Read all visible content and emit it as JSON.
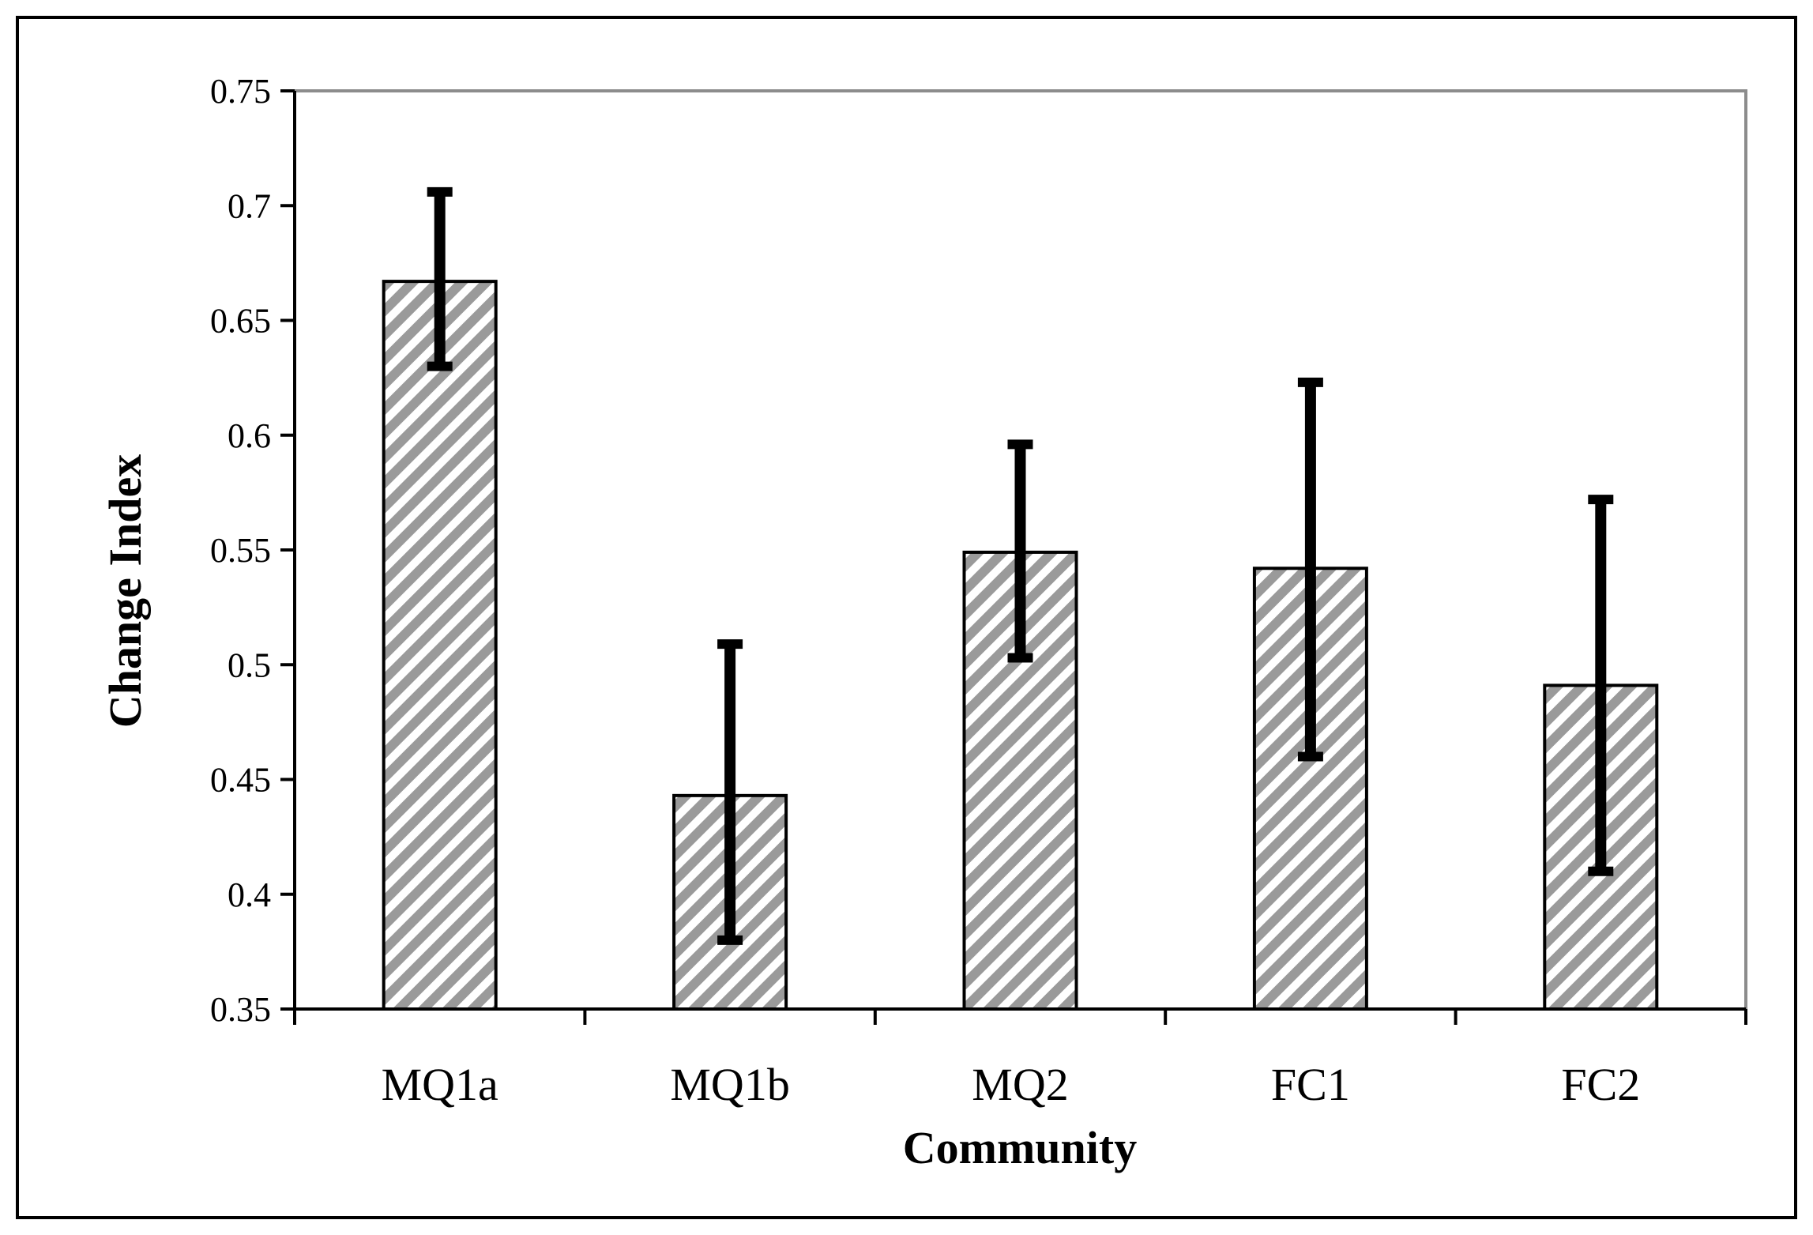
{
  "chart_data": {
    "type": "bar",
    "title": "",
    "xlabel": "Community",
    "ylabel": "Change Index",
    "categories": [
      "MQ1a",
      "MQ1b",
      "MQ2",
      "FC1",
      "FC2"
    ],
    "values": [
      0.667,
      0.443,
      0.549,
      0.542,
      0.491
    ],
    "error_low": [
      0.63,
      0.38,
      0.503,
      0.46,
      0.41
    ],
    "error_high": [
      0.706,
      0.509,
      0.596,
      0.623,
      0.572
    ],
    "ylim": [
      0.35,
      0.75
    ],
    "yticks": [
      0.35,
      0.4,
      0.45,
      0.5,
      0.55,
      0.6,
      0.65,
      0.7,
      0.75
    ],
    "ytick_labels": [
      "0.35",
      "0.4",
      "0.45",
      "0.5",
      "0.55",
      "0.6",
      "0.65",
      "0.7",
      "0.75"
    ],
    "grid": false,
    "legend": "none",
    "bar_pattern": "diagonal-hatch",
    "colors": {
      "hatch_stripe": "#9a9a9a",
      "hatch_gap": "#ffffff",
      "bar_outline": "#000000",
      "error_bar": "#000000",
      "plot_frame": "#8c8c8c",
      "outer_border": "#000000"
    }
  }
}
